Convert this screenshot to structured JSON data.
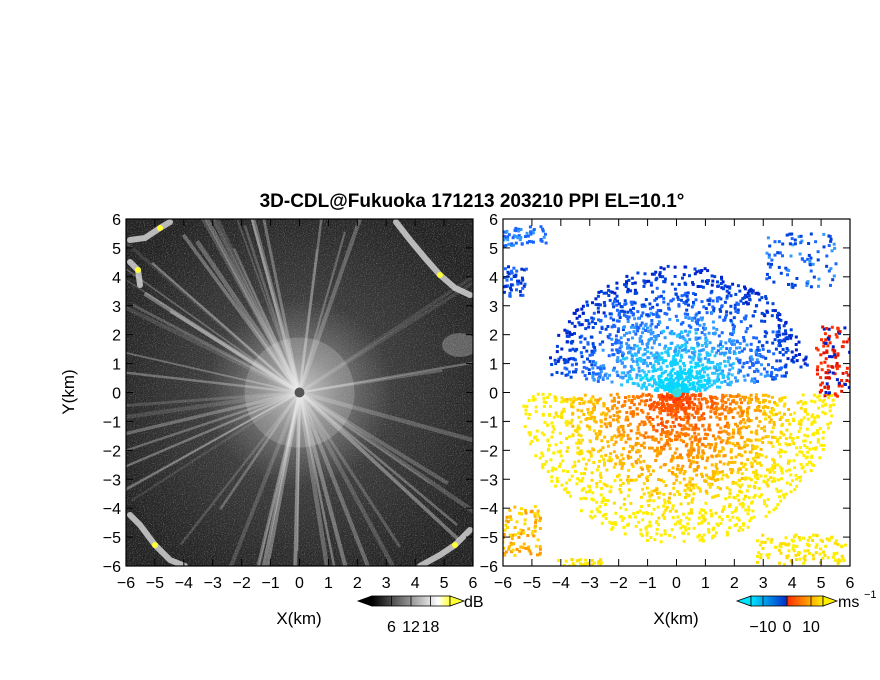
{
  "chart_data": {
    "title": "3D-CDL@Fukuoka 171213 203210 PPI EL=10.1°",
    "panels": [
      {
        "type": "heatmap",
        "name": "reflectivity",
        "xlabel": "X(km)",
        "ylabel": "Y(km)",
        "xlim": [
          -6,
          6
        ],
        "ylim": [
          -6,
          6
        ],
        "xticks": [
          "−6",
          "−5",
          "−4",
          "−3",
          "−2",
          "−1",
          "0",
          "1",
          "2",
          "3",
          "4",
          "5",
          "6"
        ],
        "yticks": [
          "6",
          "5",
          "4",
          "3",
          "2",
          "1",
          "0",
          "−1",
          "−2",
          "−3",
          "−4",
          "−5",
          "−6"
        ],
        "colorbar": {
          "unit": "dB",
          "ticks": [
            "6",
            "12",
            "18"
          ],
          "tick_values": [
            6,
            12,
            18
          ],
          "range": [
            0,
            24
          ],
          "colors": [
            "#000000",
            "#ffffff",
            "#ffff33"
          ]
        }
      },
      {
        "type": "heatmap",
        "name": "doppler-velocity",
        "xlabel": "X(km)",
        "ylabel": "",
        "xlim": [
          -6,
          6
        ],
        "ylim": [
          -6,
          6
        ],
        "xticks": [
          "−6",
          "−5",
          "−4",
          "−3",
          "−2",
          "−1",
          "0",
          "1",
          "2",
          "3",
          "4",
          "5",
          "6"
        ],
        "yticks": [
          "6",
          "5",
          "4",
          "3",
          "2",
          "1",
          "0",
          "−1",
          "−2",
          "−3",
          "−4",
          "−5",
          "−6"
        ],
        "colorbar": {
          "unit": "ms",
          "unit_exp": "−1",
          "ticks": [
            "−10",
            "0",
            "10"
          ],
          "tick_values": [
            -10,
            0,
            10
          ],
          "range": [
            -15,
            15
          ],
          "colors": [
            "#00e5ff",
            "#0033cc",
            "#ff3300",
            "#ffee00"
          ]
        }
      }
    ]
  }
}
